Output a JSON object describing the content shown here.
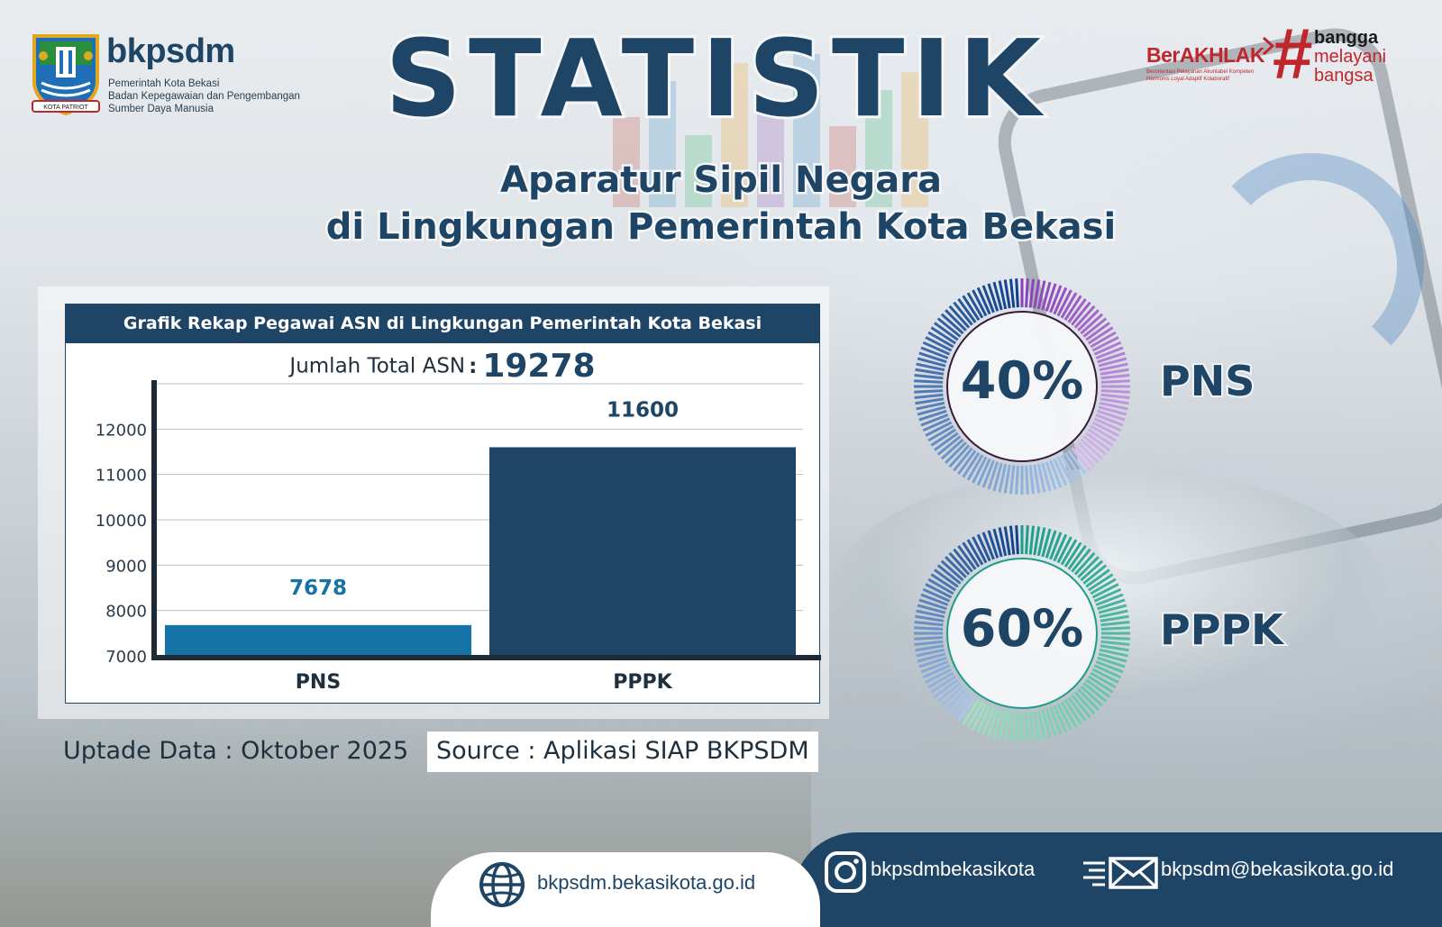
{
  "header": {
    "brand_name": "bkpsdm",
    "brand_sub_1": "Pemerintah Kota Bekasi",
    "brand_sub_2": "Badan Kepegawaian dan Pengembangan",
    "brand_sub_3": "Sumber Daya Manusia",
    "logo_text": "KOTA PATRIOT",
    "title": "STATISTIK",
    "subtitle_1": "Aparatur Sipil Negara",
    "subtitle_2": "di Lingkungan Pemerintah Kota Bekasi",
    "berakhlak": "BerAKHLAK",
    "berakhlak_sub_1": "Berorientasi Pelayanan Akuntabel Kompeten",
    "berakhlak_sub_2": "Harmonis Loyal Adaptif Kolaboratif",
    "bangga_1": "bangga",
    "bangga_2": "melayani",
    "bangga_3": "bangsa"
  },
  "chart_data": {
    "type": "bar",
    "title": "Grafik Rekap Pegawai ASN di Lingkungan Pemerintah Kota Bekasi",
    "total_label": "Jumlah Total ASN",
    "total_value": 19278,
    "categories": [
      "PNS",
      "PPPK"
    ],
    "values": [
      7678,
      11600
    ],
    "data_labels": [
      "7678",
      "11600"
    ],
    "colors": [
      "#1673a8",
      "#1f4566"
    ],
    "ylim": [
      7000,
      13000
    ],
    "yticks": [
      7000,
      8000,
      9000,
      10000,
      11000,
      12000
    ],
    "grid": true,
    "xlabel": "",
    "ylabel": ""
  },
  "donuts": [
    {
      "label": "40%",
      "category": "PNS",
      "percent": 40,
      "colors": [
        "#8a3fb8",
        "#d9bdf0"
      ]
    },
    {
      "label": "60%",
      "category": "PPPK",
      "percent": 60,
      "colors": [
        "#1d9c8a",
        "#9fe3c2"
      ]
    }
  ],
  "footer": {
    "update": "Uptade Data : Oktober 2025",
    "source": "Source : Aplikasi SIAP BKPSDM",
    "website": "bkpsdm.bekasikota.go.id",
    "instagram": "bkpsdmbekasikota",
    "email": "bkpsdm@bekasikota.go.id"
  }
}
